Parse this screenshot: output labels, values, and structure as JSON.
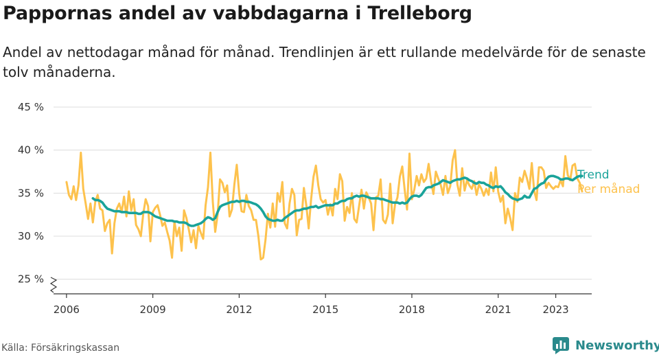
{
  "header": {
    "title": "Pappornas andel av vabbdagarna i Trelleborg",
    "subtitle": "Andel av nettodagar månad för månad. Trendlinjen är ett rullande medelvärde för de senaste tolv månaderna."
  },
  "footer": {
    "source": "Källa: Försäkringskassan",
    "brand": "Newsworthy"
  },
  "colors": {
    "monthly": "#FDC24D",
    "trend": "#1AA39A",
    "brand": "#2A8A8C",
    "grid": "#dcdcdc"
  },
  "chart_data": {
    "type": "line",
    "x_start": "2006-01",
    "x_end": "2023-05",
    "x_unit": "month",
    "ylim": [
      25,
      45
    ],
    "y_ticks": [
      25,
      30,
      35,
      40,
      45
    ],
    "y_tick_labels": [
      "25 %",
      "30 %",
      "35 %",
      "40 %",
      "45 %"
    ],
    "x_ticks": [
      2006,
      2009,
      2012,
      2015,
      2018,
      2021,
      2023
    ],
    "x_tick_labels": [
      "2006",
      "2009",
      "2012",
      "2015",
      "2018",
      "2021",
      "2023"
    ],
    "broken_y_axis": true,
    "grid": true,
    "legend": "inline-right",
    "series": [
      {
        "name": "Per månad",
        "color": "#FDC24D",
        "values": [
          36.3,
          34.8,
          34.3,
          35.8,
          34.2,
          35.9,
          39.7,
          35.5,
          33.8,
          32.0,
          33.8,
          31.6,
          34.0,
          34.8,
          33.2,
          33.0,
          30.6,
          31.5,
          31.9,
          28.0,
          31.5,
          33.2,
          33.8,
          32.8,
          34.6,
          32.3,
          35.2,
          33.0,
          34.3,
          31.3,
          30.8,
          30.0,
          32.6,
          34.3,
          33.5,
          29.4,
          32.8,
          33.3,
          33.6,
          32.5,
          31.2,
          31.6,
          30.5,
          29.5,
          27.5,
          31.7,
          30.0,
          31.0,
          28.3,
          33.0,
          32.1,
          30.8,
          29.3,
          30.7,
          28.6,
          31.2,
          30.4,
          29.7,
          33.6,
          35.7,
          39.7,
          34.0,
          30.5,
          32.5,
          36.6,
          36.2,
          35.1,
          35.9,
          32.3,
          33.1,
          36.0,
          38.3,
          35.0,
          32.9,
          32.8,
          34.8,
          33.5,
          33.0,
          31.9,
          31.9,
          30.0,
          27.3,
          27.5,
          29.6,
          32.6,
          31.0,
          33.8,
          31.1,
          35.0,
          34.0,
          36.3,
          31.5,
          30.9,
          33.8,
          35.5,
          34.8,
          30.1,
          31.9,
          32.0,
          35.6,
          33.6,
          30.9,
          34.3,
          36.9,
          38.2,
          35.9,
          34.3,
          33.9,
          34.2,
          32.5,
          33.7,
          32.4,
          35.5,
          34.3,
          37.2,
          36.4,
          31.8,
          33.4,
          32.7,
          35.0,
          32.0,
          31.6,
          33.5,
          35.4,
          33.2,
          35.1,
          34.5,
          33.8,
          30.7,
          34.5,
          34.7,
          36.6,
          31.9,
          31.5,
          32.5,
          36.1,
          31.5,
          33.7,
          34.5,
          36.9,
          38.1,
          35.4,
          33.1,
          39.6,
          34.3,
          35.4,
          37.0,
          35.9,
          37.2,
          36.3,
          36.7,
          38.4,
          36.4,
          34.9,
          37.5,
          36.7,
          36.0,
          34.8,
          37.0,
          35.0,
          35.8,
          38.8,
          40.0,
          36.0,
          34.7,
          37.9,
          35.3,
          36.5,
          35.9,
          35.5,
          36.4,
          34.8,
          36.0,
          35.5,
          34.7,
          35.5,
          34.8,
          37.4,
          35.2,
          38.0,
          35.2,
          34.0,
          34.7,
          31.5,
          33.2,
          32.1,
          30.7,
          35.0,
          34.0,
          36.8,
          36.3,
          37.6,
          36.7,
          35.5,
          38.5,
          35.3,
          34.2,
          38.0,
          38.0,
          37.6,
          35.6,
          36.2,
          35.8,
          35.5,
          35.8,
          35.7,
          36.5,
          35.8,
          39.3,
          37.1,
          36.5,
          38.2,
          38.4,
          36.7,
          36.2,
          35.2
        ]
      },
      {
        "name": "Trend",
        "color": "#1AA39A",
        "values": [
          null,
          null,
          null,
          null,
          null,
          null,
          null,
          null,
          null,
          null,
          null,
          34.4,
          34.2,
          34.2,
          34.1,
          33.9,
          33.5,
          33.2,
          33.1,
          33.0,
          32.9,
          32.9,
          32.9,
          32.8,
          32.8,
          32.8,
          32.7,
          32.7,
          32.7,
          32.7,
          32.6,
          32.6,
          32.8,
          32.8,
          32.8,
          32.7,
          32.5,
          32.3,
          32.2,
          32.1,
          32.0,
          31.9,
          31.8,
          31.8,
          31.8,
          31.7,
          31.7,
          31.6,
          31.6,
          31.6,
          31.5,
          31.3,
          31.2,
          31.2,
          31.3,
          31.4,
          31.5,
          31.7,
          32.0,
          32.2,
          32.1,
          31.9,
          32.1,
          32.8,
          33.4,
          33.6,
          33.7,
          33.8,
          33.9,
          34.0,
          34.0,
          34.1,
          34.0,
          34.1,
          34.1,
          34.0,
          34.0,
          33.9,
          33.8,
          33.7,
          33.5,
          33.2,
          32.8,
          32.3,
          32.0,
          31.9,
          31.8,
          31.8,
          31.9,
          31.8,
          31.8,
          32.1,
          32.3,
          32.5,
          32.7,
          32.9,
          33.0,
          33.0,
          33.1,
          33.2,
          33.2,
          33.3,
          33.4,
          33.4,
          33.5,
          33.3,
          33.4,
          33.5,
          33.6,
          33.6,
          33.6,
          33.6,
          33.8,
          33.8,
          34.0,
          34.1,
          34.1,
          34.3,
          34.4,
          34.4,
          34.6,
          34.7,
          34.6,
          34.7,
          34.7,
          34.6,
          34.5,
          34.4,
          34.4,
          34.4,
          34.4,
          34.3,
          34.3,
          34.2,
          34.1,
          34.0,
          33.9,
          33.9,
          33.9,
          33.8,
          33.9,
          33.8,
          33.9,
          34.3,
          34.6,
          34.7,
          34.7,
          34.6,
          34.8,
          35.2,
          35.6,
          35.7,
          35.7,
          35.9,
          36.0,
          36.1,
          36.3,
          36.5,
          36.4,
          36.3,
          36.2,
          36.4,
          36.5,
          36.6,
          36.6,
          36.7,
          36.8,
          36.7,
          36.5,
          36.4,
          36.2,
          36.1,
          36.3,
          36.2,
          36.2,
          36.0,
          35.9,
          35.7,
          35.6,
          35.8,
          35.7,
          35.8,
          35.5,
          35.1,
          34.9,
          34.6,
          34.4,
          34.3,
          34.2,
          34.3,
          34.4,
          34.7,
          34.5,
          34.5,
          35.0,
          35.5,
          35.6,
          35.9,
          36.1,
          36.2,
          36.6,
          36.9,
          37.0,
          37.0,
          36.9,
          36.8,
          36.6,
          36.6,
          36.7,
          36.7,
          36.6,
          36.5,
          36.7,
          36.9,
          37.0,
          37.0
        ]
      }
    ]
  }
}
